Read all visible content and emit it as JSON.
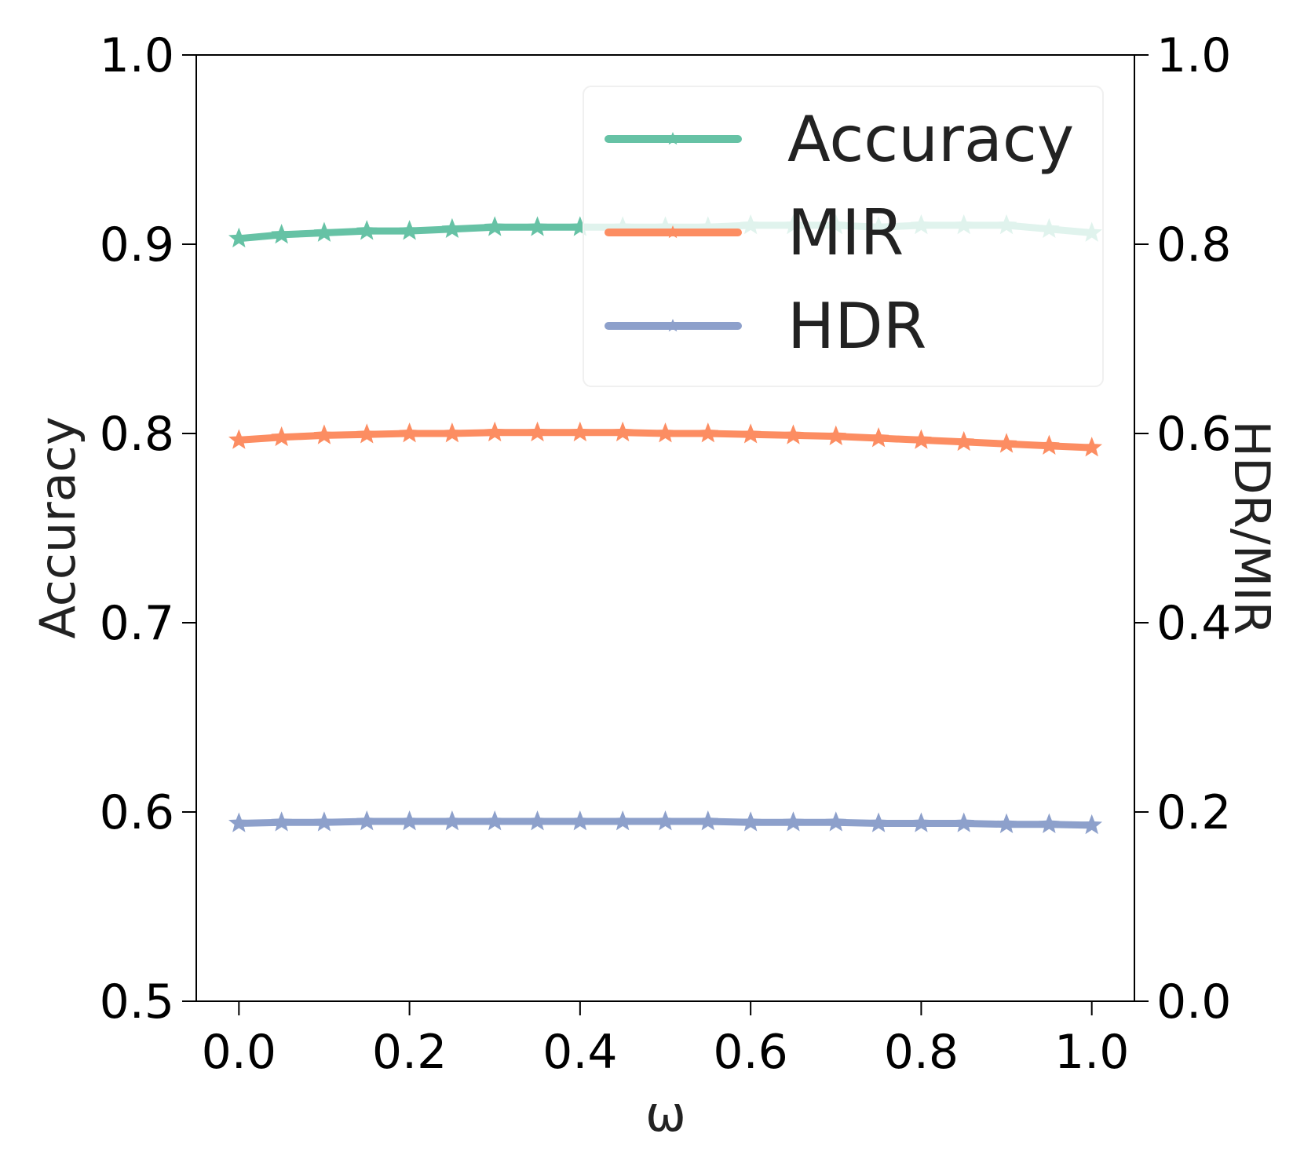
{
  "chart_data": {
    "type": "line",
    "xlabel": "ω",
    "ylabel_left": "Accuracy",
    "ylabel_right": "HDR/MIR",
    "xlim": [
      -0.05,
      1.05
    ],
    "ylim_left": [
      0.5,
      1.0
    ],
    "ylim_right": [
      0.0,
      1.0
    ],
    "x_ticks": [
      "0.0",
      "0.2",
      "0.4",
      "0.6",
      "0.8",
      "1.0"
    ],
    "y_left_ticks": [
      "0.5",
      "0.6",
      "0.7",
      "0.8",
      "0.9",
      "1.0"
    ],
    "y_right_ticks": [
      "0.0",
      "0.2",
      "0.4",
      "0.6",
      "0.8",
      "1.0"
    ],
    "x": [
      0.0,
      0.05,
      0.1,
      0.15,
      0.2,
      0.25,
      0.3,
      0.35,
      0.4,
      0.45,
      0.5,
      0.55,
      0.6,
      0.65,
      0.7,
      0.75,
      0.8,
      0.85,
      0.9,
      0.95,
      1.0
    ],
    "series": [
      {
        "name": "Accuracy",
        "axis": "left",
        "color": "#66c2a5",
        "marker": "star",
        "values": [
          0.903,
          0.905,
          0.906,
          0.907,
          0.907,
          0.908,
          0.909,
          0.909,
          0.909,
          0.909,
          0.909,
          0.909,
          0.91,
          0.91,
          0.91,
          0.909,
          0.91,
          0.91,
          0.91,
          0.908,
          0.906
        ]
      },
      {
        "name": "MIR",
        "axis": "right",
        "color": "#fc8d62",
        "marker": "star",
        "values": [
          0.593,
          0.596,
          0.598,
          0.599,
          0.6,
          0.6,
          0.601,
          0.601,
          0.601,
          0.601,
          0.6,
          0.6,
          0.599,
          0.598,
          0.597,
          0.595,
          0.593,
          0.591,
          0.589,
          0.587,
          0.585
        ]
      },
      {
        "name": "HDR",
        "axis": "right",
        "color": "#8da0cb",
        "marker": "star",
        "values": [
          0.188,
          0.189,
          0.189,
          0.19,
          0.19,
          0.19,
          0.19,
          0.19,
          0.19,
          0.19,
          0.19,
          0.19,
          0.189,
          0.189,
          0.189,
          0.188,
          0.188,
          0.188,
          0.187,
          0.187,
          0.186
        ]
      }
    ],
    "legend_position": "top-right",
    "grid": false
  }
}
